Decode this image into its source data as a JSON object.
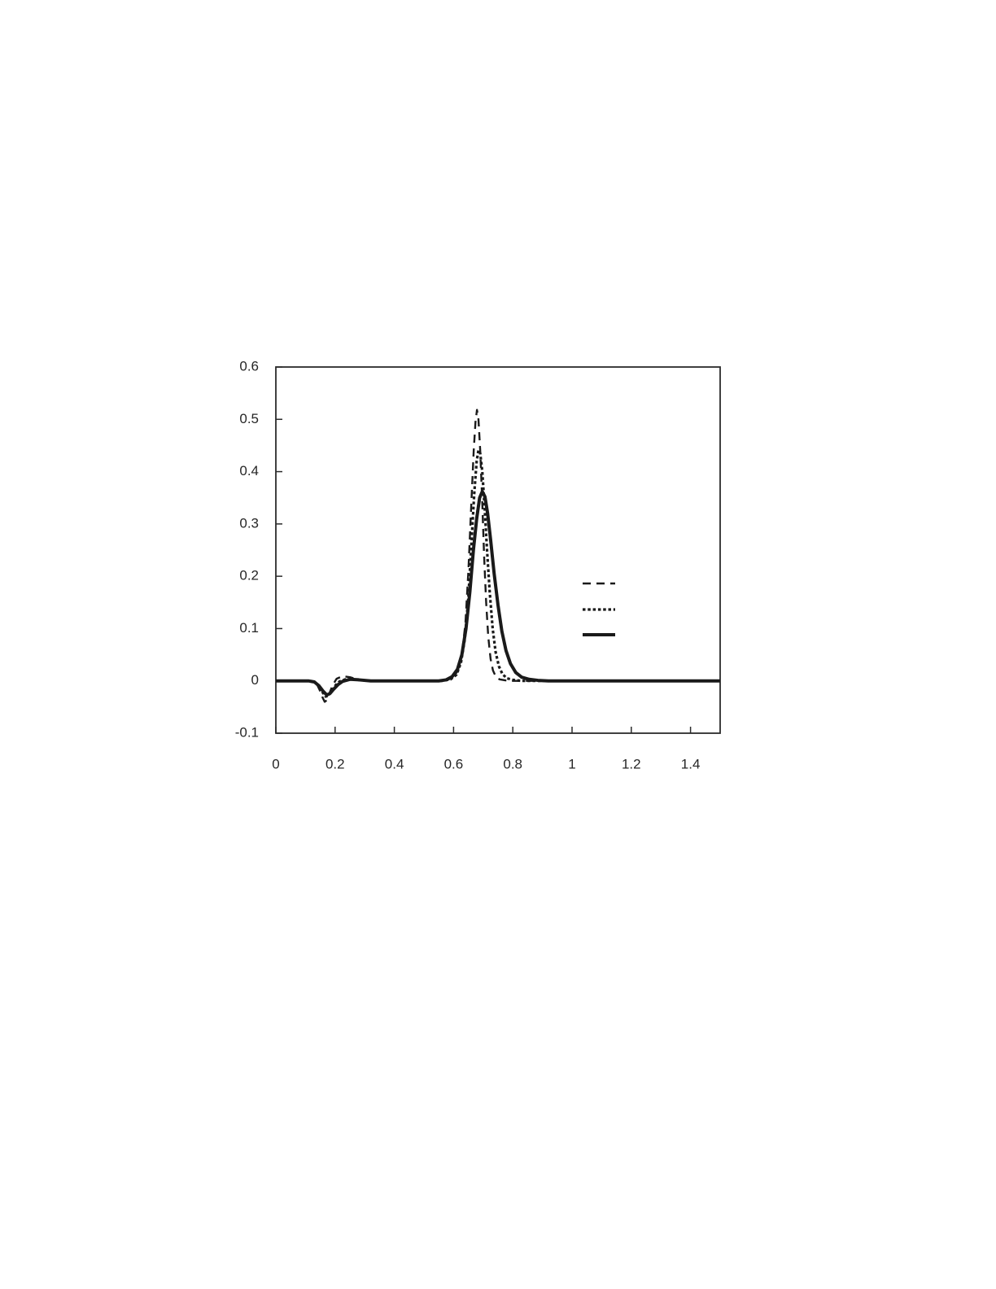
{
  "page": {
    "background_color": "#ffffff",
    "title": ""
  },
  "chart_data": {
    "type": "line",
    "title": "",
    "subtitle": "",
    "xlabel": "",
    "ylabel": "",
    "xlim": [
      0,
      1.5
    ],
    "ylim": [
      -0.1,
      0.6
    ],
    "grid": "off",
    "plot_border": "full-box",
    "axis_color": "#2b2b2b",
    "label_color": "#262626",
    "line_color": "#1a1a1a",
    "label_font_size": 17,
    "x_ticks": {
      "values": [
        0,
        0.2,
        0.4,
        0.6,
        0.8,
        1,
        1.2,
        1.4
      ],
      "labels": [
        "0",
        "0.2",
        "0.4",
        "0.6",
        "0.8",
        "1",
        "1.2",
        "1.4"
      ]
    },
    "y_ticks": {
      "values": [
        0.6,
        0.5,
        0.4,
        0.3,
        0.2,
        0.1,
        0,
        -0.1
      ],
      "labels": [
        "0.6",
        "0.5",
        "0.4",
        "0.3",
        "0.2",
        "0.1",
        "0",
        "-0.1"
      ]
    },
    "legend": {
      "position": "inside-right",
      "has_border": false,
      "entries": [
        {
          "label": "",
          "line_style": "dashed"
        },
        {
          "label": "",
          "line_style": "dotted"
        },
        {
          "label": "",
          "line_style": "solid"
        }
      ]
    },
    "series": [
      {
        "name": "series-1-dashed",
        "line_style": "dashed",
        "stroke_width": 2.4,
        "dash_pattern": "10 7",
        "peak": {
          "x": 0.68,
          "y": 0.518
        },
        "dip": {
          "x": 0.165,
          "y": -0.04
        },
        "points": [
          [
            0,
            0
          ],
          [
            0.05,
            0
          ],
          [
            0.1,
            0
          ],
          [
            0.125,
            -0.001
          ],
          [
            0.14,
            -0.008
          ],
          [
            0.15,
            -0.02
          ],
          [
            0.158,
            -0.032
          ],
          [
            0.165,
            -0.04
          ],
          [
            0.172,
            -0.037
          ],
          [
            0.182,
            -0.022
          ],
          [
            0.192,
            -0.008
          ],
          [
            0.205,
            0.004
          ],
          [
            0.225,
            0.009
          ],
          [
            0.25,
            0.007
          ],
          [
            0.275,
            0.003
          ],
          [
            0.3,
            0.001
          ],
          [
            0.35,
            0
          ],
          [
            0.45,
            0
          ],
          [
            0.55,
            0
          ],
          [
            0.58,
            0.002
          ],
          [
            0.6,
            0.007
          ],
          [
            0.615,
            0.02
          ],
          [
            0.628,
            0.05
          ],
          [
            0.64,
            0.11
          ],
          [
            0.65,
            0.21
          ],
          [
            0.66,
            0.34
          ],
          [
            0.668,
            0.44
          ],
          [
            0.674,
            0.495
          ],
          [
            0.679,
            0.518
          ],
          [
            0.684,
            0.5
          ],
          [
            0.69,
            0.44
          ],
          [
            0.697,
            0.34
          ],
          [
            0.703,
            0.24
          ],
          [
            0.71,
            0.15
          ],
          [
            0.717,
            0.085
          ],
          [
            0.725,
            0.042
          ],
          [
            0.733,
            0.02
          ],
          [
            0.742,
            0.009
          ],
          [
            0.755,
            0.003
          ],
          [
            0.775,
            0.001
          ],
          [
            0.8,
            0
          ],
          [
            0.9,
            0
          ],
          [
            1.0,
            0
          ],
          [
            1.1,
            0
          ],
          [
            1.25,
            0
          ],
          [
            1.4,
            0
          ],
          [
            1.5,
            0
          ]
        ]
      },
      {
        "name": "series-2-dotted",
        "line_style": "dotted",
        "stroke_width": 3.2,
        "dash_pattern": "3.5 2.8",
        "peak": {
          "x": 0.687,
          "y": 0.443
        },
        "dip": {
          "x": 0.17,
          "y": -0.03
        },
        "points": [
          [
            0,
            0
          ],
          [
            0.05,
            0
          ],
          [
            0.11,
            0
          ],
          [
            0.13,
            -0.002
          ],
          [
            0.145,
            -0.01
          ],
          [
            0.158,
            -0.022
          ],
          [
            0.168,
            -0.03
          ],
          [
            0.178,
            -0.028
          ],
          [
            0.19,
            -0.018
          ],
          [
            0.202,
            -0.008
          ],
          [
            0.215,
            -0.001
          ],
          [
            0.235,
            0.003
          ],
          [
            0.26,
            0.003
          ],
          [
            0.29,
            0.001
          ],
          [
            0.33,
            0
          ],
          [
            0.45,
            0
          ],
          [
            0.56,
            0
          ],
          [
            0.59,
            0.003
          ],
          [
            0.61,
            0.012
          ],
          [
            0.625,
            0.035
          ],
          [
            0.638,
            0.08
          ],
          [
            0.65,
            0.16
          ],
          [
            0.66,
            0.26
          ],
          [
            0.67,
            0.36
          ],
          [
            0.678,
            0.42
          ],
          [
            0.684,
            0.441
          ],
          [
            0.69,
            0.435
          ],
          [
            0.697,
            0.4
          ],
          [
            0.705,
            0.33
          ],
          [
            0.713,
            0.25
          ],
          [
            0.722,
            0.17
          ],
          [
            0.732,
            0.1
          ],
          [
            0.742,
            0.055
          ],
          [
            0.753,
            0.028
          ],
          [
            0.765,
            0.013
          ],
          [
            0.78,
            0.005
          ],
          [
            0.8,
            0.002
          ],
          [
            0.83,
            0
          ],
          [
            0.95,
            0
          ],
          [
            1.1,
            0
          ],
          [
            1.3,
            0
          ],
          [
            1.5,
            0
          ]
        ]
      },
      {
        "name": "series-3-solid",
        "line_style": "solid",
        "stroke_width": 4,
        "dash_pattern": "",
        "peak": {
          "x": 0.697,
          "y": 0.362
        },
        "dip": {
          "x": 0.172,
          "y": -0.027
        },
        "points": [
          [
            0,
            0
          ],
          [
            0.05,
            0
          ],
          [
            0.11,
            0
          ],
          [
            0.13,
            -0.002
          ],
          [
            0.145,
            -0.009
          ],
          [
            0.16,
            -0.02
          ],
          [
            0.172,
            -0.027
          ],
          [
            0.183,
            -0.024
          ],
          [
            0.195,
            -0.016
          ],
          [
            0.21,
            -0.007
          ],
          [
            0.225,
            -0.001
          ],
          [
            0.25,
            0.003
          ],
          [
            0.28,
            0.002
          ],
          [
            0.32,
            0
          ],
          [
            0.42,
            0
          ],
          [
            0.55,
            0
          ],
          [
            0.575,
            0.002
          ],
          [
            0.595,
            0.008
          ],
          [
            0.613,
            0.022
          ],
          [
            0.628,
            0.05
          ],
          [
            0.642,
            0.1
          ],
          [
            0.655,
            0.17
          ],
          [
            0.667,
            0.25
          ],
          [
            0.678,
            0.31
          ],
          [
            0.688,
            0.35
          ],
          [
            0.697,
            0.362
          ],
          [
            0.706,
            0.352
          ],
          [
            0.715,
            0.32
          ],
          [
            0.725,
            0.27
          ],
          [
            0.737,
            0.205
          ],
          [
            0.75,
            0.145
          ],
          [
            0.763,
            0.095
          ],
          [
            0.777,
            0.058
          ],
          [
            0.792,
            0.033
          ],
          [
            0.81,
            0.016
          ],
          [
            0.83,
            0.007
          ],
          [
            0.855,
            0.003
          ],
          [
            0.885,
            0.001
          ],
          [
            0.92,
            0
          ],
          [
            1.05,
            0
          ],
          [
            1.2,
            0
          ],
          [
            1.35,
            0
          ],
          [
            1.5,
            0
          ]
        ]
      }
    ]
  }
}
